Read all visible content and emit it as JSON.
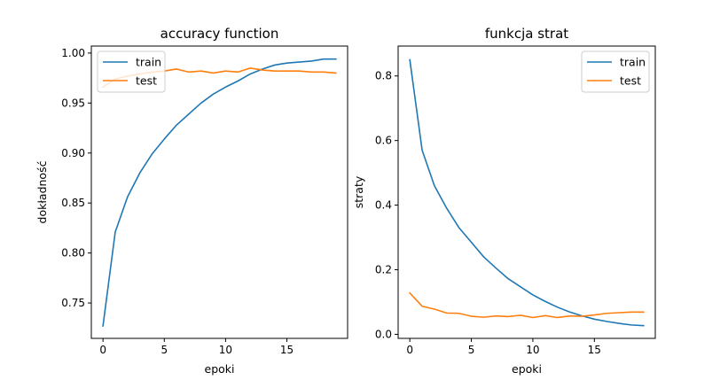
{
  "chart_data": [
    {
      "type": "line",
      "title": "accuracy function",
      "xlabel": "epoki",
      "ylabel": "dokładność",
      "xlim": [
        -0.95,
        19.95
      ],
      "ylim": [
        0.7146,
        1.007
      ],
      "xticks": [
        0,
        5,
        10,
        15
      ],
      "xtick_labels": [
        "0",
        "5",
        "10",
        "15"
      ],
      "yticks": [
        0.75,
        0.8,
        0.85,
        0.9,
        0.95,
        1.0
      ],
      "ytick_labels": [
        "0.75",
        "0.80",
        "0.85",
        "0.90",
        "0.95",
        "1.00"
      ],
      "grid": false,
      "legend_position": "upper-left",
      "x": [
        0,
        1,
        2,
        3,
        4,
        5,
        6,
        7,
        8,
        9,
        10,
        11,
        12,
        13,
        14,
        15,
        16,
        17,
        18,
        19
      ],
      "series": [
        {
          "name": "train",
          "color": "#1f77b4",
          "values": [
            0.727,
            0.821,
            0.856,
            0.88,
            0.899,
            0.914,
            0.928,
            0.939,
            0.95,
            0.959,
            0.966,
            0.972,
            0.979,
            0.984,
            0.988,
            0.99,
            0.991,
            0.992,
            0.994,
            0.994
          ]
        },
        {
          "name": "test",
          "color": "#ff7f0e",
          "values": [
            0.966,
            0.974,
            0.977,
            0.979,
            0.981,
            0.982,
            0.984,
            0.981,
            0.982,
            0.98,
            0.982,
            0.981,
            0.985,
            0.983,
            0.982,
            0.982,
            0.982,
            0.981,
            0.981,
            0.98
          ]
        }
      ]
    },
    {
      "type": "line",
      "title": "funkcja strat",
      "xlabel": "epoki",
      "ylabel": "straty",
      "xlim": [
        -0.95,
        19.95
      ],
      "ylim": [
        -0.0125,
        0.8925
      ],
      "xticks": [
        0,
        5,
        10,
        15
      ],
      "xtick_labels": [
        "0",
        "5",
        "10",
        "15"
      ],
      "yticks": [
        0.0,
        0.2,
        0.4,
        0.6,
        0.8
      ],
      "ytick_labels": [
        "0.0",
        "0.2",
        "0.4",
        "0.6",
        "0.8"
      ],
      "grid": false,
      "legend_position": "upper-right",
      "x": [
        0,
        1,
        2,
        3,
        4,
        5,
        6,
        7,
        8,
        9,
        10,
        11,
        12,
        13,
        14,
        15,
        16,
        17,
        18,
        19
      ],
      "series": [
        {
          "name": "train",
          "color": "#1f77b4",
          "values": [
            0.85,
            0.57,
            0.46,
            0.39,
            0.33,
            0.285,
            0.24,
            0.205,
            0.172,
            0.147,
            0.122,
            0.102,
            0.084,
            0.069,
            0.057,
            0.047,
            0.04,
            0.034,
            0.029,
            0.027
          ]
        },
        {
          "name": "test",
          "color": "#ff7f0e",
          "values": [
            0.128,
            0.087,
            0.078,
            0.066,
            0.065,
            0.056,
            0.053,
            0.057,
            0.055,
            0.059,
            0.052,
            0.058,
            0.052,
            0.057,
            0.056,
            0.06,
            0.065,
            0.067,
            0.069,
            0.069
          ]
        }
      ]
    }
  ]
}
